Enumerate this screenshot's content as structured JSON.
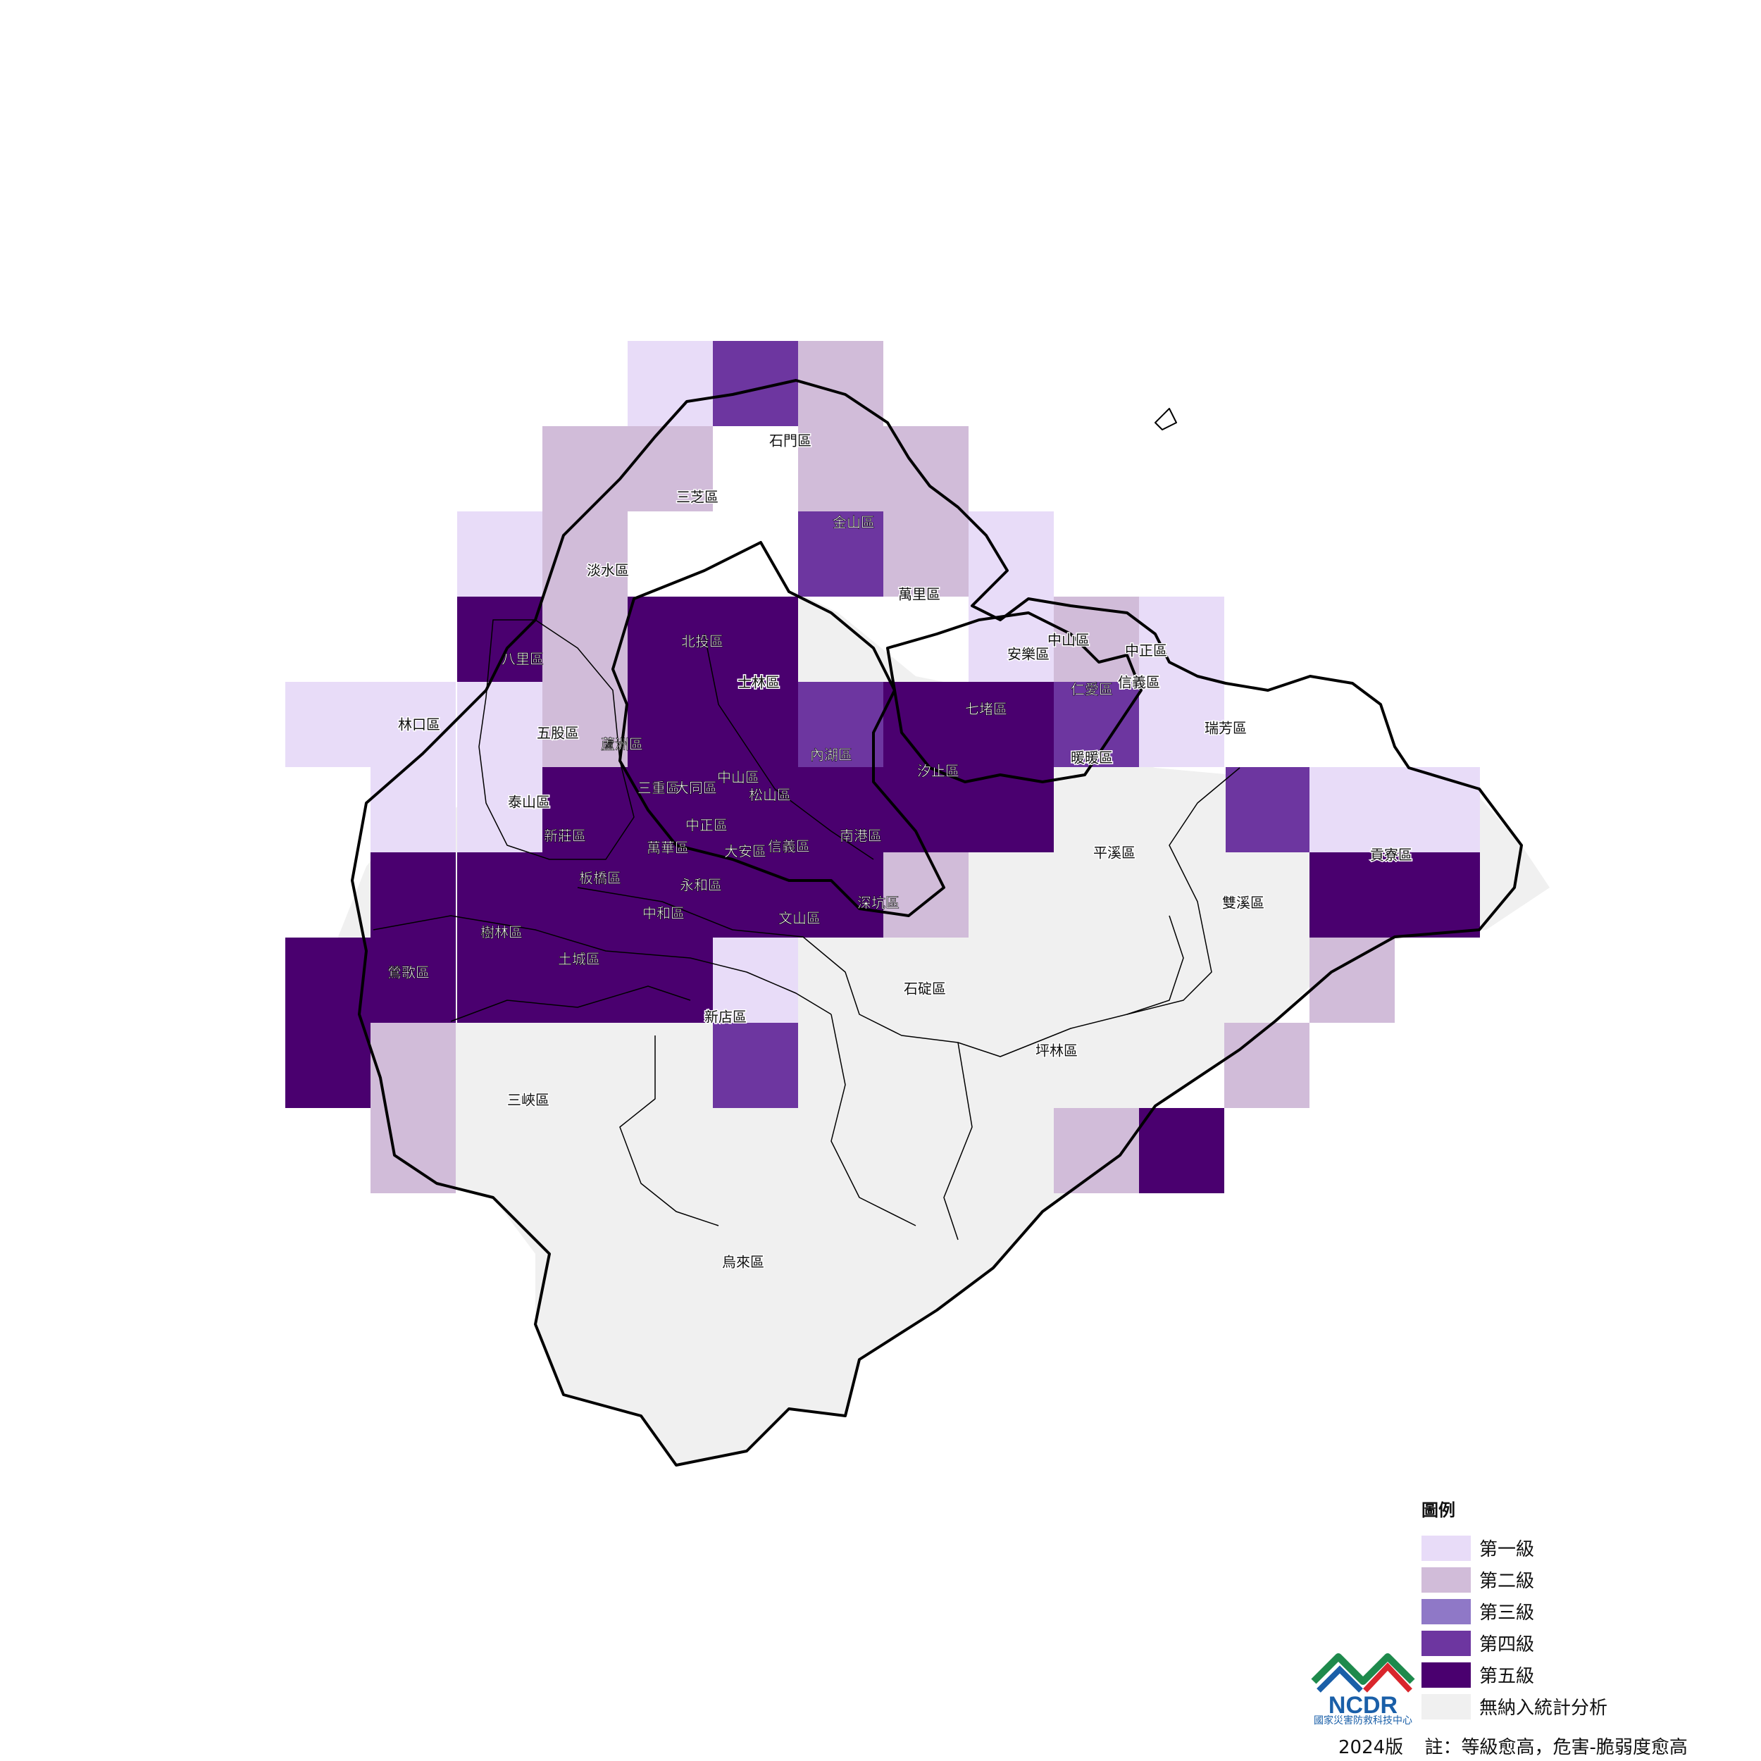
{
  "legend": {
    "title": "圖例",
    "items": [
      {
        "label": "第一級",
        "color": "#e8dcf8"
      },
      {
        "label": "第二級",
        "color": "#d1bcd9"
      },
      {
        "label": "第三級",
        "color": "#8f78c7"
      },
      {
        "label": "第四級",
        "color": "#6d36a0"
      },
      {
        "label": "第五級",
        "color": "#4a006f"
      },
      {
        "label": "無納入統計分析",
        "color": "#f0f0f0"
      }
    ]
  },
  "footer": {
    "version": "2024版",
    "note": "註：等級愈高，危害-脆弱度愈高"
  },
  "logo": {
    "text": "NCDR",
    "subtitle": "國家災害防救科技中心"
  },
  "districts": [
    "石門區",
    "三芝區",
    "金山區",
    "淡水區",
    "萬里區",
    "八里區",
    "北投區",
    "士林區",
    "中山區",
    "中正區",
    "安樂區",
    "仁愛區",
    "信義區",
    "林口區",
    "五股區",
    "蘆洲區",
    "內湖區",
    "七堵區",
    "瑞芳區",
    "暖暖區",
    "汐止區",
    "三重區",
    "大同區",
    "中山區",
    "松山區",
    "泰山區",
    "新莊區",
    "中正區",
    "萬華區",
    "大安區",
    "信義區",
    "南港區",
    "板橋區",
    "永和區",
    "中和區",
    "深坑區",
    "文山區",
    "平溪區",
    "雙溪區",
    "貢寮區",
    "樹林區",
    "鶯歌區",
    "土城區",
    "新店區",
    "石碇區",
    "坪林區",
    "三峽區",
    "烏來區"
  ]
}
